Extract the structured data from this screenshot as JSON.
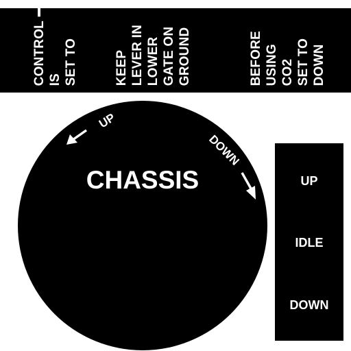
{
  "banner": {
    "columns": [
      {
        "lines": [
          "CONTROL",
          "IS",
          "SET TO"
        ],
        "arrow": "up-arrow-icon"
      },
      {
        "lines": [
          "KEEP",
          "LEVER IN",
          "LOWER",
          "GATE ON",
          "GROUND"
        ]
      },
      {
        "lines": [
          "BEFORE",
          "USING",
          "CO2",
          "SET TO",
          "DOWN"
        ]
      }
    ]
  },
  "dial": {
    "title": "CHASSIS",
    "up_label": "UP",
    "down_label": "DOWN"
  },
  "panel": {
    "positions": [
      "UP",
      "IDLE",
      "DOWN"
    ]
  },
  "colors": {
    "ink": "#000000",
    "paper": "#ffffff"
  }
}
